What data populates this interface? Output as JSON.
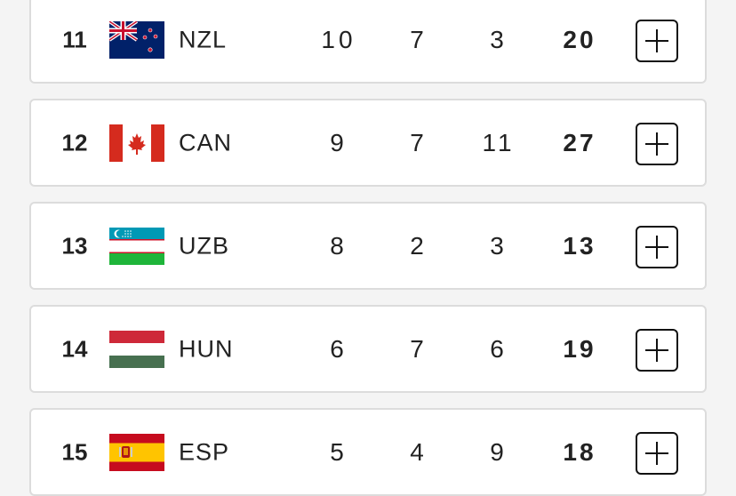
{
  "table": {
    "rows": [
      [
        11,
        "NZL",
        10,
        7,
        3,
        20
      ],
      [
        12,
        "CAN",
        9,
        7,
        11,
        27
      ],
      [
        13,
        "UZB",
        8,
        2,
        3,
        13
      ],
      [
        14,
        "HUN",
        6,
        7,
        6,
        19
      ],
      [
        15,
        "ESP",
        5,
        4,
        9,
        18
      ]
    ]
  }
}
